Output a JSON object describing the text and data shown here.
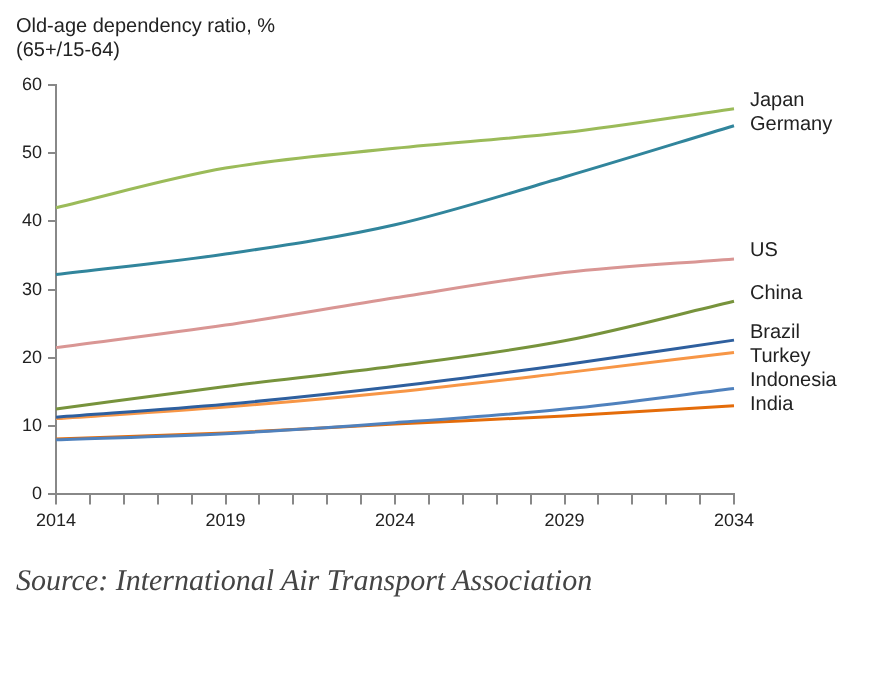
{
  "chart_data": {
    "type": "line",
    "ylabel": "Old-age dependency ratio, %\n(65+/15-64)",
    "x": [
      2014,
      2019,
      2024,
      2029,
      2034
    ],
    "series": [
      {
        "name": "Japan",
        "color": "#9bbb59",
        "values": [
          42,
          47.8,
          50.7,
          53,
          56.5
        ]
      },
      {
        "name": "Germany",
        "color": "#31859c",
        "values": [
          32.2,
          35.2,
          39.5,
          46.5,
          54
        ]
      },
      {
        "name": "US",
        "color": "#d99694",
        "values": [
          21.5,
          24.8,
          28.8,
          32.5,
          34.5
        ]
      },
      {
        "name": "China",
        "color": "#77933c",
        "values": [
          12.5,
          15.8,
          18.8,
          22.5,
          28.3
        ]
      },
      {
        "name": "Brazil",
        "color": "#2e5f9e",
        "values": [
          11.3,
          13.2,
          15.8,
          19,
          22.6
        ]
      },
      {
        "name": "Turkey",
        "color": "#f79646",
        "values": [
          11.1,
          12.8,
          15,
          17.8,
          20.8
        ]
      },
      {
        "name": "Indonesia",
        "color": "#4f81bd",
        "values": [
          8,
          8.9,
          10.5,
          12.5,
          15.5
        ]
      },
      {
        "name": "India",
        "color": "#e46c0a",
        "values": [
          8.1,
          9,
          10.3,
          11.5,
          13
        ]
      }
    ],
    "xlim": [
      2014,
      2034
    ],
    "xticks": [
      2014,
      {
        "value": 2015,
        "label": null
      },
      {
        "value": 2016,
        "label": null
      },
      {
        "value": 2017,
        "label": null
      },
      {
        "value": 2018,
        "label": null
      },
      2019,
      {
        "value": 2020,
        "label": null
      },
      {
        "value": 2021,
        "label": null
      },
      {
        "value": 2022,
        "label": null
      },
      {
        "value": 2023,
        "label": null
      },
      2024,
      {
        "value": 2025,
        "label": null
      },
      {
        "value": 2026,
        "label": null
      },
      {
        "value": 2027,
        "label": null
      },
      {
        "value": 2028,
        "label": null
      },
      2029,
      {
        "value": 2030,
        "label": null
      },
      {
        "value": 2031,
        "label": null
      },
      {
        "value": 2032,
        "label": null
      },
      {
        "value": 2033,
        "label": null
      },
      2034
    ],
    "ylim": [
      0,
      60
    ],
    "yticks": [
      0,
      10,
      20,
      30,
      40,
      50,
      60
    ],
    "grid": false,
    "legend": false,
    "marker": "none",
    "line_style": "solid",
    "annotations": [
      "Source: International Air Transport Association"
    ]
  }
}
